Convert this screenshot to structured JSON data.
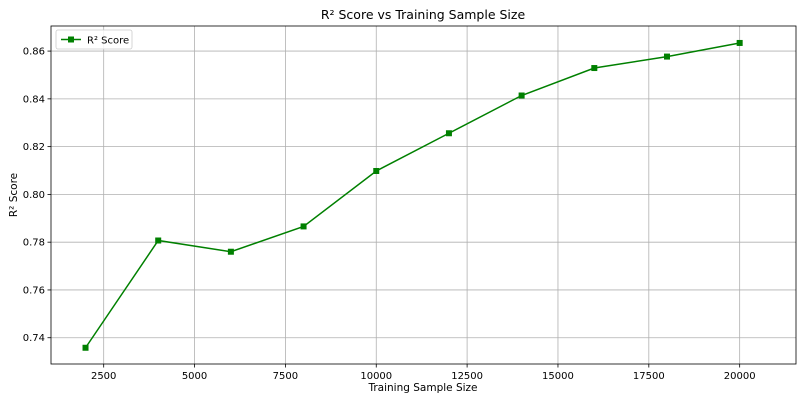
{
  "chart_data": {
    "type": "line",
    "title": "R² Score vs Training Sample Size",
    "xlabel": "Training Sample Size",
    "ylabel": "R² Score",
    "grid": true,
    "legend_position": "top-left",
    "xlim": [
      1050,
      21550
    ],
    "ylim": [
      0.729,
      0.8705
    ],
    "xticks": [
      2500,
      5000,
      7500,
      10000,
      12500,
      15000,
      17500,
      20000
    ],
    "yticks": [
      0.74,
      0.76,
      0.78,
      0.8,
      0.82,
      0.84,
      0.86
    ],
    "series": [
      {
        "name": "R² Score",
        "color": "#008000",
        "marker": "square",
        "x": [
          2000,
          4000,
          6000,
          8000,
          10000,
          12000,
          14000,
          16000,
          18000,
          20000
        ],
        "y": [
          0.7358,
          0.7807,
          0.776,
          0.7866,
          0.8098,
          0.8256,
          0.8414,
          0.8529,
          0.8577,
          0.8634
        ]
      }
    ]
  }
}
